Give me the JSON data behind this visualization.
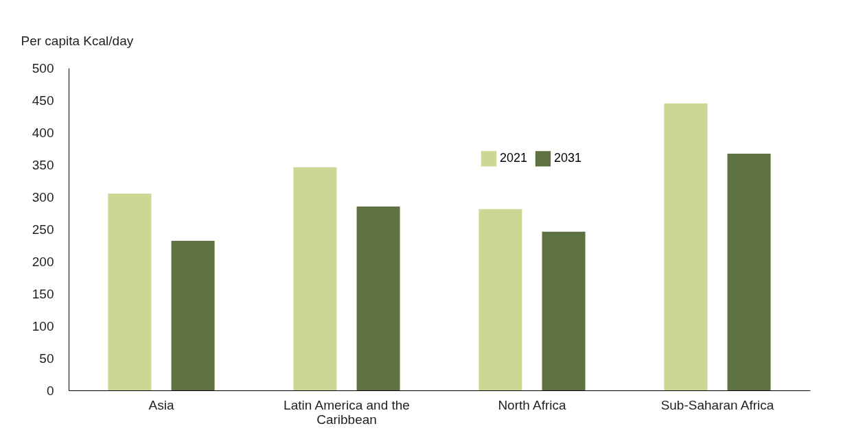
{
  "chart_data": {
    "type": "bar",
    "ylabel": "Per capita Kcal/day",
    "categories": [
      "Asia",
      "Latin America and the Caribbean",
      "North Africa",
      "Sub-Saharan Africa"
    ],
    "series": [
      {
        "name": "2021",
        "color": "#ccd794",
        "values": [
          305,
          346,
          281,
          445
        ]
      },
      {
        "name": "2031",
        "color": "#5e7140",
        "values": [
          232,
          285,
          246,
          367
        ]
      }
    ],
    "ylim": [
      0,
      500
    ],
    "yticks": [
      0,
      50,
      100,
      150,
      200,
      250,
      300,
      350,
      400,
      450,
      500
    ],
    "grid": false,
    "legend": "top"
  }
}
